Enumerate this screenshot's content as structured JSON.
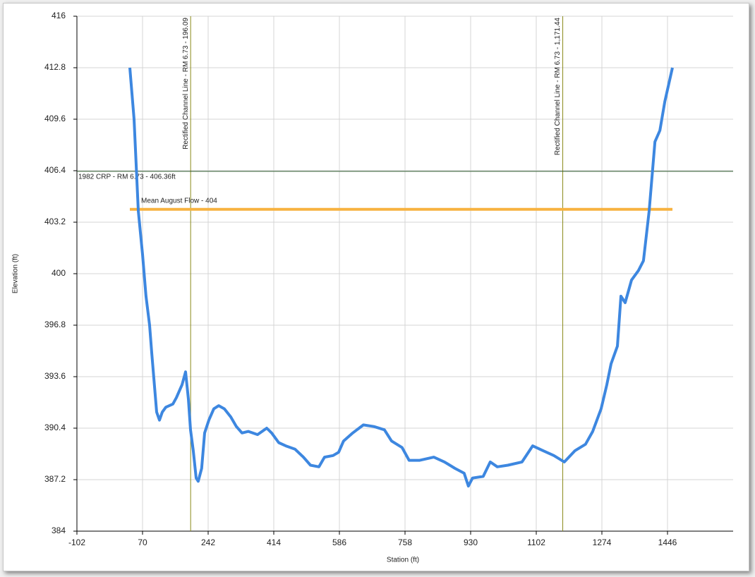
{
  "chart_data": {
    "type": "line",
    "x_label": "Station (ft)",
    "y_label": "Elevation (ft)",
    "xlim": [
      -102,
      1618
    ],
    "xticks": [
      -102,
      70,
      242,
      414,
      586,
      758,
      930,
      1102,
      1274,
      1446
    ],
    "ylim": [
      384,
      416
    ],
    "yticks": [
      384,
      387.2,
      390.4,
      393.6,
      396.8,
      400,
      403.2,
      406.4,
      409.6,
      412.8,
      416
    ],
    "grid": true,
    "x": [
      36.7,
      47.8,
      58.9,
      70,
      79,
      88.5,
      94,
      107,
      114.4,
      121.8,
      131,
      149.5,
      158.8,
      173.6,
      182.8,
      190.2,
      195.8,
      203,
      210.5,
      216,
      225,
      232.8,
      243.9,
      256.8,
      269.8,
      284.6,
      301.2,
      316,
      330.8,
      347.5,
      371.5,
      395.5,
      408.5,
      427,
      445.5,
      469.5,
      491.7,
      510.2,
      532.4,
      547,
      569.3,
      584,
      597,
      621,
      648.8,
      676.5,
      704,
      722.6,
      750.3,
      768.8,
      796.5,
      833.5,
      861.3,
      889,
      913,
      924,
      935,
      963,
      981.5,
      1000,
      1027.7,
      1064.7,
      1092.5,
      1120,
      1148,
      1175.7,
      1203.5,
      1231,
      1250,
      1272,
      1287,
      1298,
      1314.6,
      1323.9,
      1335,
      1351.6,
      1370,
      1383,
      1398,
      1413,
      1426,
      1439,
      1459
    ],
    "series": [
      {
        "color": "#3d87e0",
        "values": [
          412.8,
          409.6,
          403.9,
          401.2,
          398.6,
          396.8,
          395.1,
          391.4,
          390.9,
          391.4,
          391.7,
          391.9,
          392.3,
          393.1,
          393.9,
          392.2,
          390.3,
          389,
          387.3,
          387.1,
          387.9,
          390.1,
          390.9,
          391.6,
          391.8,
          391.6,
          391.1,
          390.5,
          390.1,
          390.2,
          390,
          390.4,
          390.1,
          389.5,
          389.3,
          389.1,
          388.6,
          388.1,
          388,
          388.6,
          388.7,
          388.9,
          389.6,
          390.1,
          390.6,
          390.5,
          390.3,
          389.6,
          389.2,
          388.4,
          388.4,
          388.6,
          388.3,
          387.9,
          387.6,
          386.8,
          387.3,
          387.4,
          388.3,
          388,
          388.1,
          388.3,
          389.3,
          389,
          388.7,
          388.3,
          389,
          389.4,
          390.2,
          391.6,
          393.1,
          394.4,
          395.5,
          398.6,
          398.2,
          399.6,
          400.2,
          400.8,
          403.9,
          408.2,
          408.9,
          410.7,
          412.8
        ]
      }
    ],
    "reference_lines": [
      {
        "axis": "x",
        "value": 196.09,
        "label": "Rectified Channel Line - RM 6.73 - 196.09",
        "color": "#8a8a1a"
      },
      {
        "axis": "x",
        "value": 1171.44,
        "label": "Rectified Channel Line - RM 6.73 - 1,171.44",
        "color": "#8a8a1a"
      },
      {
        "axis": "y",
        "value": 406.36,
        "label": "1982 CRP - RM 6.73 - 406.36ft",
        "color": "#2f5a2f"
      },
      {
        "axis": "y",
        "value": 404,
        "label": "Mean August Flow - 404",
        "color": "#f7b240",
        "width": 4
      }
    ]
  }
}
